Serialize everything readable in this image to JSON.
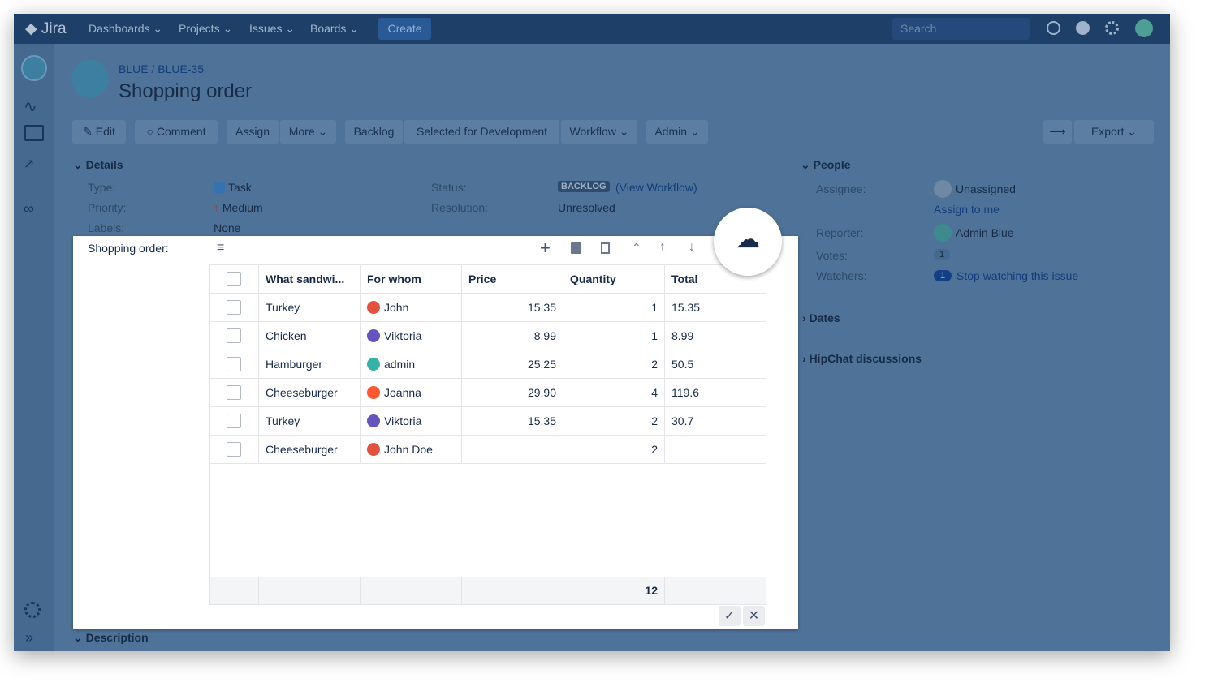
{
  "nav": {
    "logo": "Jira",
    "menus": [
      "Dashboards",
      "Projects",
      "Issues",
      "Boards"
    ],
    "create": "Create",
    "search": "Search"
  },
  "breadcrumb": {
    "project": "BLUE",
    "issue": "BLUE-35"
  },
  "title": "Shopping order",
  "toolbar": [
    "Edit",
    "Comment",
    "Assign",
    "More",
    "Backlog",
    "Selected for Development",
    "Workflow",
    "Admin"
  ],
  "export": "Export",
  "details": {
    "heading": "Details",
    "type_label": "Type:",
    "type": "Task",
    "priority_label": "Priority:",
    "priority": "Medium",
    "labels_label": "Labels:",
    "labels": "None",
    "status_label": "Status:",
    "status": "BACKLOG",
    "view_workflow": "(View Workflow)",
    "resolution_label": "Resolution:",
    "resolution": "Unresolved"
  },
  "people": {
    "heading": "People",
    "assignee_label": "Assignee:",
    "assignee": "Unassigned",
    "assign_to_me": "Assign to me",
    "reporter_label": "Reporter:",
    "reporter": "Admin Blue",
    "votes_label": "Votes:",
    "votes": 1,
    "watchers_label": "Watchers:",
    "watchers": 1,
    "stop_watching": "Stop watching this issue"
  },
  "sections": {
    "dates": "Dates",
    "hipchat": "HipChat discussions",
    "description": "Description"
  },
  "popup": {
    "label": "Shopping order:",
    "table": {
      "columns": [
        "What sandwi...",
        "For whom",
        "Price",
        "Quantity",
        "Total"
      ],
      "rows": [
        [
          "Turkey",
          "John",
          "15.35",
          1,
          "15.35"
        ],
        [
          "Chicken",
          "Viktoria",
          "8.99",
          1,
          "8.99"
        ],
        [
          "Hamburger",
          "admin",
          "25.25",
          2,
          "50.5"
        ],
        [
          "Cheeseburger",
          "Joanna",
          "29.90",
          4,
          "119.6"
        ],
        [
          "Turkey",
          "Viktoria",
          "15.35",
          2,
          "30.7"
        ],
        [
          "Cheeseburger",
          "John Doe",
          null,
          2,
          null
        ]
      ],
      "quantity_sum": 12
    }
  }
}
